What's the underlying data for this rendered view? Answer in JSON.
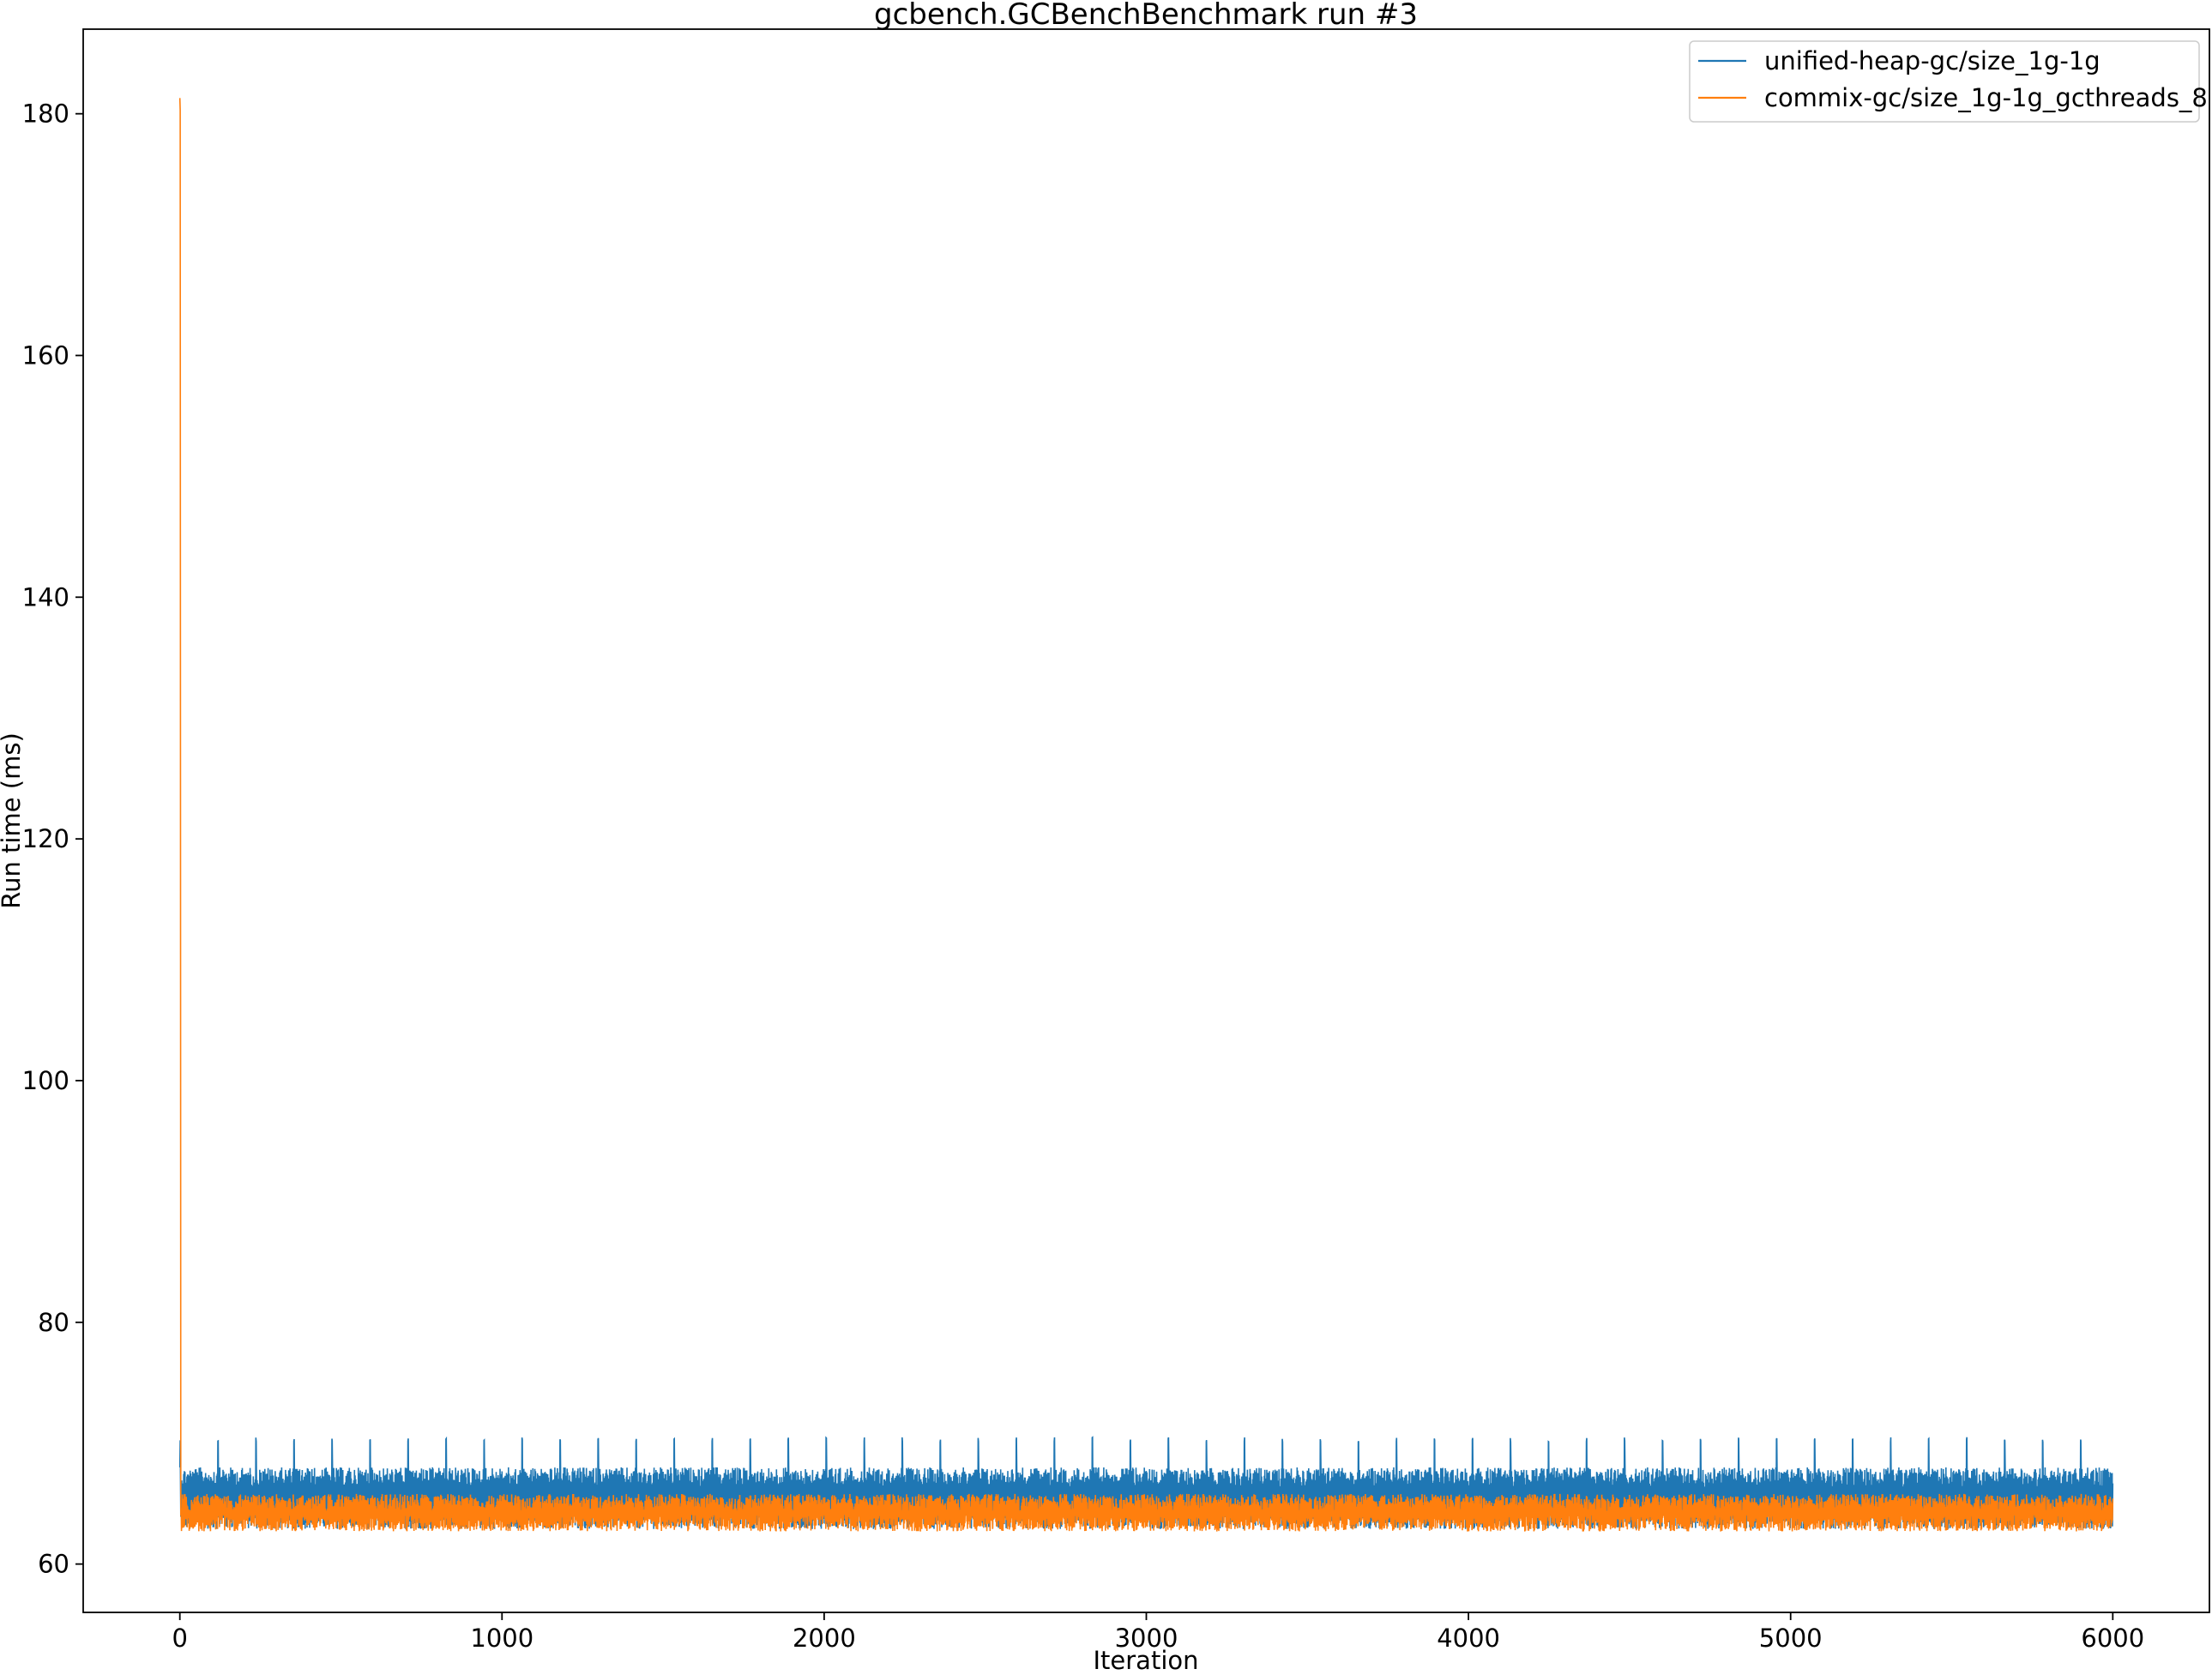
{
  "chart_data": {
    "type": "line",
    "title": "gcbench.GCBenchBenchmark run #3",
    "xlabel": "Iteration",
    "ylabel": "Run time (ms)",
    "xlim": [
      -300,
      6300
    ],
    "ylim": [
      56,
      187
    ],
    "xticks": [
      0,
      1000,
      2000,
      3000,
      4000,
      5000,
      6000
    ],
    "yticks": [
      60,
      80,
      100,
      120,
      140,
      160,
      180
    ],
    "grid": false,
    "legend_position": "top-right",
    "n_iterations": 6000,
    "series": [
      {
        "name": "unified-heap-gc/size_1g-1g",
        "color": "#1f77b4",
        "first_value": 68,
        "band_low": 62.9,
        "band_high": 68.0,
        "periodic_peak": 70.5,
        "peak_period": 118
      },
      {
        "name": "commix-gc/size_1g-1g_gcthreads_8",
        "color": "#ff7f0e",
        "first_value": 181.3,
        "band_low": 62.7,
        "band_high": 65.8
      }
    ]
  }
}
